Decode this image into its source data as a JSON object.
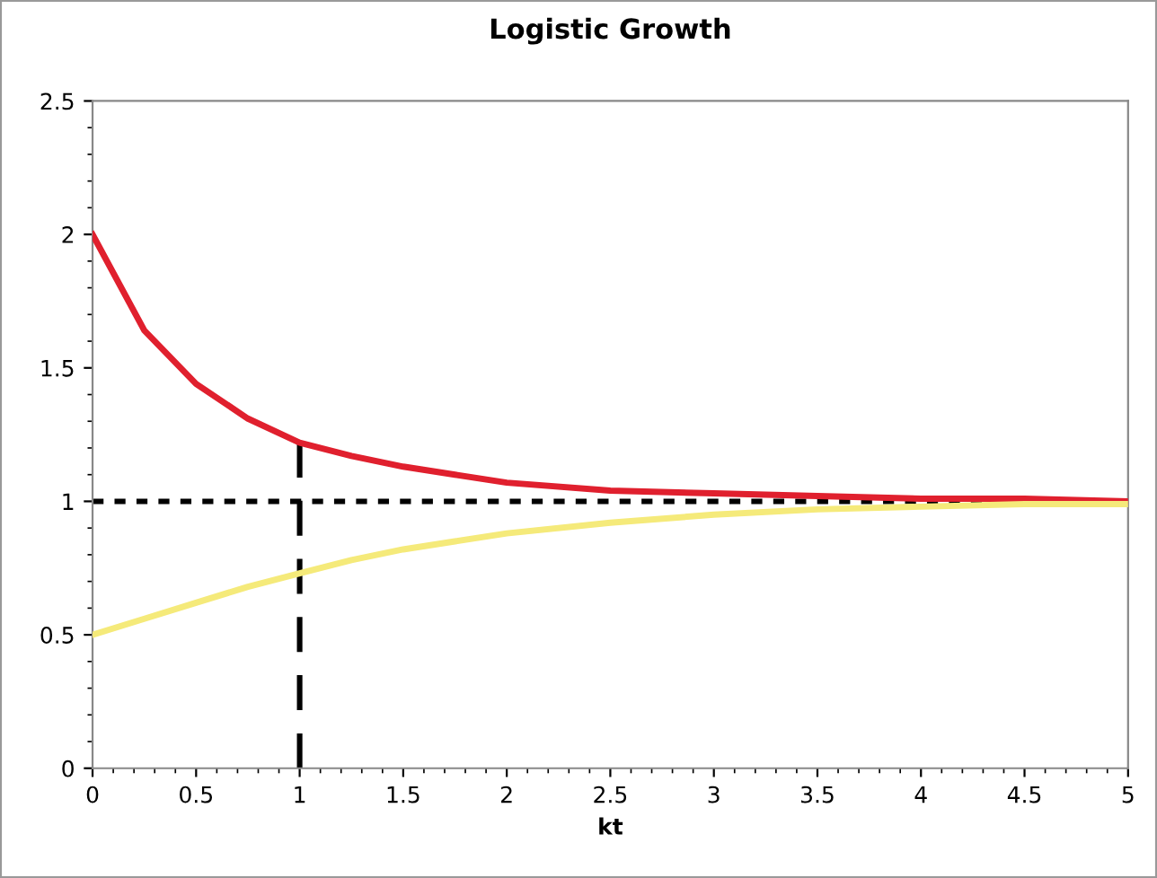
{
  "chart_data": {
    "type": "line",
    "title": "Logistic Growth",
    "xlabel": "kt",
    "x": [
      0,
      0.25,
      0.5,
      0.75,
      1,
      1.25,
      1.5,
      1.75,
      2,
      2.5,
      3,
      3.5,
      4,
      4.5,
      5
    ],
    "series": [
      {
        "color": "#e0202e",
        "values": [
          2.0,
          1.64,
          1.44,
          1.31,
          1.22,
          1.17,
          1.13,
          1.1,
          1.07,
          1.04,
          1.03,
          1.02,
          1.01,
          1.01,
          1.0
        ]
      },
      {
        "color": "#f5ea7a",
        "values": [
          0.5,
          0.56,
          0.62,
          0.68,
          0.73,
          0.78,
          0.82,
          0.85,
          0.88,
          0.92,
          0.95,
          0.97,
          0.98,
          0.99,
          0.99
        ]
      },
      {
        "color": "#000000",
        "x": [
          1,
          1
        ],
        "values": [
          0,
          1.22
        ],
        "line_style": "dashed"
      }
    ],
    "ref_lines": [
      {
        "axis": "y",
        "value": 1,
        "color": "#000000",
        "line_style": "dotted"
      }
    ],
    "xlim": [
      0,
      5
    ],
    "ylim": [
      0,
      2.5
    ],
    "xticks": [
      0,
      0.5,
      1,
      1.5,
      2,
      2.5,
      3,
      3.5,
      4,
      4.5,
      5
    ],
    "yticks": [
      0,
      0.5,
      1,
      1.5,
      2,
      2.5
    ],
    "grid": false,
    "legend": false,
    "marker": "none",
    "line_style": "solid"
  }
}
